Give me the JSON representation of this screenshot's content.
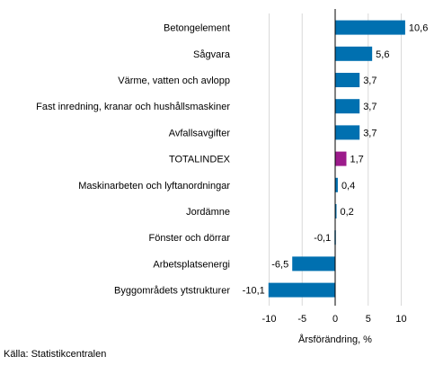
{
  "chart_data": {
    "type": "bar",
    "orientation": "horizontal",
    "categories": [
      "Betongelement",
      "Sågvara",
      "Värme, vatten och avlopp",
      "Fast inredning, kranar och hushållsmaskiner",
      "Avfallsavgifter",
      "TOTALINDEX",
      "Maskinarbeten och lyftanordningar",
      "Jordämne",
      "Fönster och dörrar",
      "Arbetsplatsenergi",
      "Byggområdets ytstrukturer"
    ],
    "values": [
      10.6,
      5.6,
      3.7,
      3.7,
      3.7,
      1.7,
      0.4,
      0.2,
      -0.1,
      -6.5,
      -10.1
    ],
    "value_labels": [
      "10,6",
      "5,6",
      "3,7",
      "3,7",
      "3,7",
      "1,7",
      "0,4",
      "0,2",
      "-0,1",
      "-6,5",
      "-10,1"
    ],
    "highlight_category": "TOTALINDEX",
    "colors": {
      "bar": "#0070b0",
      "highlight": "#9c1b8b",
      "gridline": "#d9d9d9",
      "axis": "#000000"
    },
    "xlim": [
      -15,
      15
    ],
    "xticks": [
      -10,
      -5,
      0,
      5,
      10
    ],
    "xtick_labels": [
      "-10",
      "-5",
      "0",
      "5",
      "10"
    ],
    "xlabel": "Årsförändring, %",
    "grid": true
  },
  "source": "Källa: Statistikcentralen"
}
